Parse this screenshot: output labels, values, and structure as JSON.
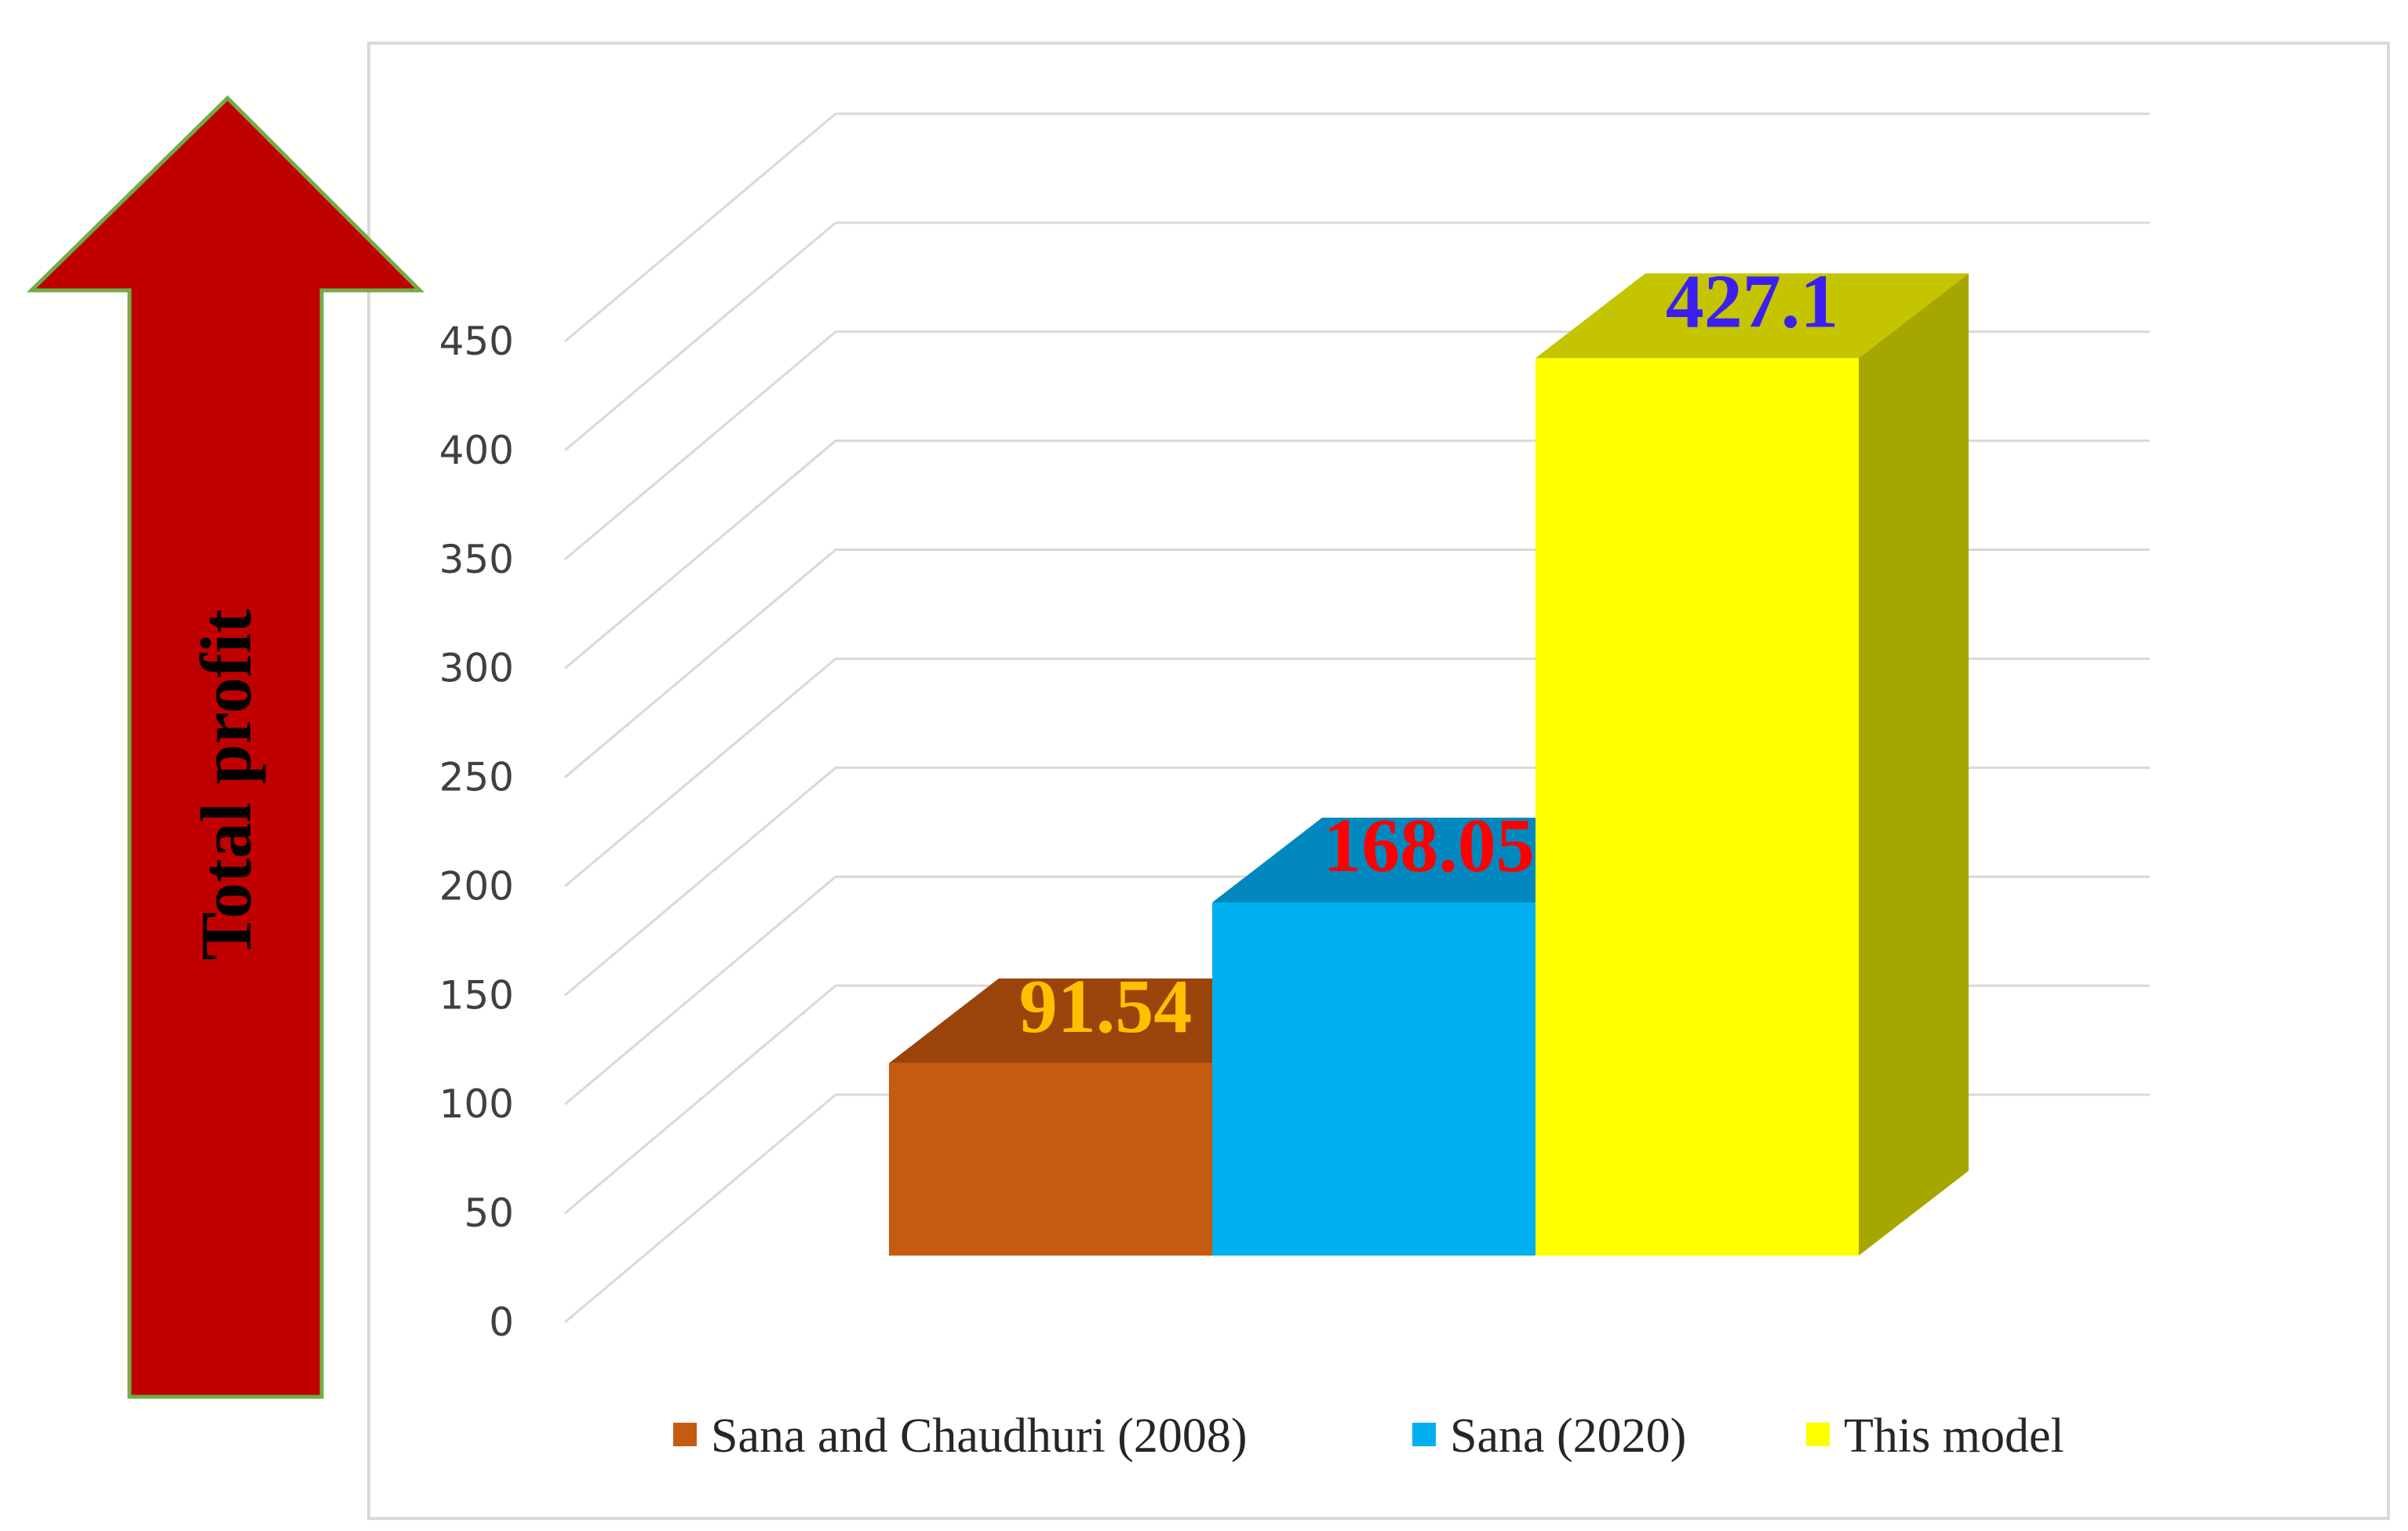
{
  "chart_data": {
    "type": "bar",
    "ylabel": "Total profit",
    "ylim": [
      0,
      450
    ],
    "yticks": [
      0,
      50,
      100,
      150,
      200,
      250,
      300,
      350,
      400,
      450
    ],
    "grid": true,
    "legend_position": "bottom",
    "series": [
      {
        "name": "Sana and Chaudhuri (2008)",
        "value": 91.54,
        "label": "91.54",
        "front": "#C55A11",
        "top": "#9A440C",
        "side": "#7F370A",
        "label_color": "#FFC000"
      },
      {
        "name": "Sana (2020)",
        "value": 168.05,
        "label": "168.05",
        "front": "#00B0F0",
        "top": "#0088BF",
        "side": "#0070A0",
        "label_color": "#FF0000"
      },
      {
        "name": "This model",
        "value": 427.1,
        "label": "427.1",
        "front": "#FFFF00",
        "top": "#C4C400",
        "side": "#A6A600",
        "label_color": "#3A1FF0"
      }
    ],
    "arrow_color": "#C00000",
    "arrow_border": "#70AD47"
  }
}
